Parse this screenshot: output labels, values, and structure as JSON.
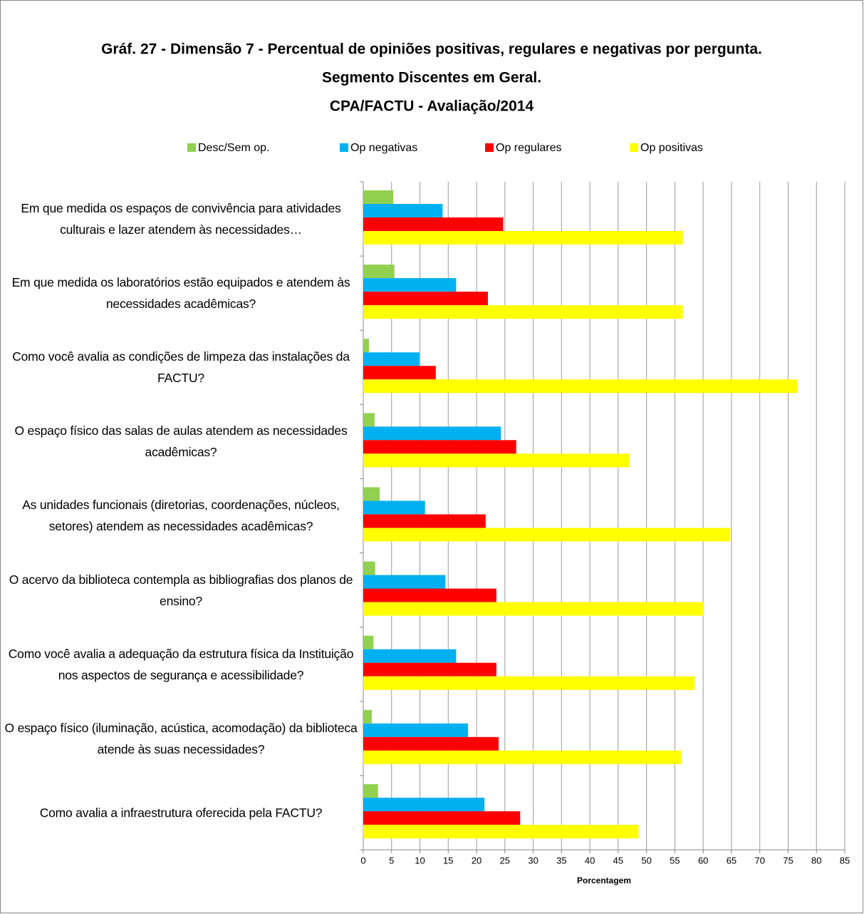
{
  "chart_data": {
    "type": "hbar",
    "title": [
      "Gráf. 27 - Dimensão 7 - Percentual de opiniões positivas, regulares e negativas por pergunta.",
      "Segmento Discentes em Geral.",
      "CPA/FACTU - Avaliação/2014"
    ],
    "categories": [
      "Em que medida os espaços de convivência para atividades culturais e lazer atendem às necessidades…",
      "Em que medida os laboratórios estão equipados e atendem às necessidades acadêmicas?",
      "Como você avalia as condições de limpeza das instalações da FACTU?",
      "O espaço físico das salas de aulas atendem as necessidades acadêmicas?",
      "As unidades funcionais (diretorias, coordenações, núcleos, setores) atendem as necessidades acadêmicas?",
      "O acervo da biblioteca contempla as bibliografias dos planos de ensino?",
      "Como você avalia a adequação da estrutura física da Instituição nos aspectos de segurança e acessibilidade?",
      "O espaço físico (iluminação, acústica, acomodação) da biblioteca atende às suas necessidades?",
      "Como avalia a infraestrutura oferecida pela FACTU?"
    ],
    "series": [
      {
        "name": "Desc/Sem op.",
        "color": "#92d050",
        "values": [
          5.3,
          5.5,
          1.0,
          2.0,
          2.9,
          2.1,
          1.8,
          1.5,
          2.6
        ]
      },
      {
        "name": "Op negativas",
        "color": "#00b0f0",
        "values": [
          14.0,
          16.4,
          9.9,
          24.3,
          10.9,
          14.5,
          16.4,
          18.5,
          21.4
        ]
      },
      {
        "name": "Op regulares",
        "color": "#ff0000",
        "values": [
          24.7,
          22.0,
          12.8,
          27.0,
          21.6,
          23.5,
          23.5,
          23.9,
          27.7
        ]
      },
      {
        "name": "Op positivas",
        "color": "#ffff00",
        "values": [
          56.4,
          56.4,
          76.6,
          46.9,
          64.8,
          60.1,
          58.5,
          56.1,
          48.6
        ]
      }
    ],
    "xlim": [
      0,
      85
    ],
    "xticks": [
      0,
      5,
      10,
      15,
      20,
      25,
      30,
      35,
      40,
      45,
      50,
      55,
      60,
      65,
      70,
      75,
      80,
      85
    ],
    "xlabel": "Porcentagem",
    "grid": true,
    "legend": "top"
  }
}
